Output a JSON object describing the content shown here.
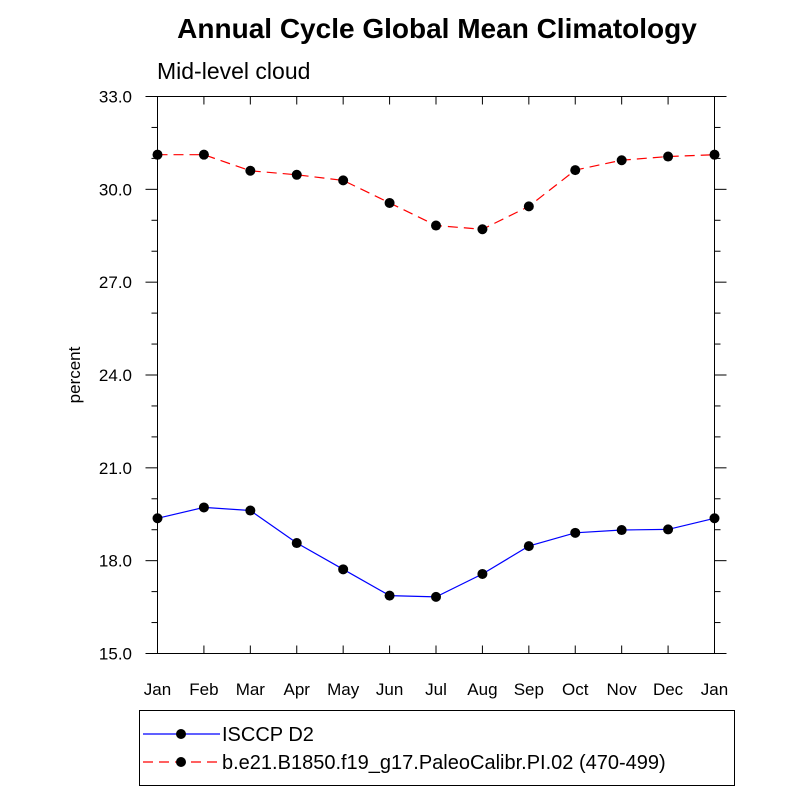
{
  "chart_data": {
    "type": "line",
    "title": "Annual Cycle Global Mean Climatology",
    "subtitle": "Mid-level cloud",
    "xlabel": "",
    "ylabel": "percent",
    "categories": [
      "Jan",
      "Feb",
      "Mar",
      "Apr",
      "May",
      "Jun",
      "Jul",
      "Aug",
      "Sep",
      "Oct",
      "Nov",
      "Dec",
      "Jan"
    ],
    "ylim": [
      15.0,
      33.0
    ],
    "yticks": [
      "15.0",
      "18.0",
      "21.0",
      "24.0",
      "27.0",
      "30.0",
      "33.0"
    ],
    "grid": false,
    "legend_position": "bottom",
    "series": [
      {
        "name": "ISCCP D2",
        "color": "#0000ff",
        "line_style": "solid",
        "marker": "filled-circle",
        "values": [
          19.37,
          19.72,
          19.62,
          18.57,
          17.72,
          16.87,
          16.83,
          17.57,
          18.47,
          18.9,
          18.99,
          19.01,
          19.37
        ]
      },
      {
        "name": "b.e21.B1850.f19_g17.PaleoCalibr.PI.02 (470-499)",
        "color": "#ff0000",
        "line_style": "dashed",
        "marker": "filled-circle",
        "values": [
          31.12,
          31.12,
          30.6,
          30.47,
          30.29,
          29.56,
          28.83,
          28.71,
          29.45,
          30.62,
          30.94,
          31.06,
          31.12
        ]
      }
    ]
  }
}
